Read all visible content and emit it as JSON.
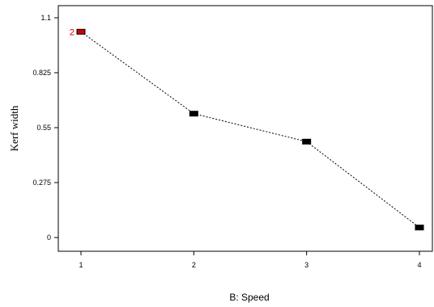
{
  "chart_data": {
    "type": "line",
    "xlabel": "B: Speed",
    "ylabel": "Kerf width",
    "x": [
      1,
      2,
      3,
      4
    ],
    "x_tick_labels": [
      "1",
      "2",
      "3",
      "4"
    ],
    "y_ticks": [
      0,
      0.275,
      0.55,
      0.825,
      1.1
    ],
    "y_tick_labels": [
      "0",
      "0.275",
      "0.55",
      "0.825",
      "1.1"
    ],
    "ylim": [
      0,
      1.1
    ],
    "xlim": [
      1,
      4
    ],
    "series": [
      {
        "values": [
          1.03,
          0.62,
          0.48,
          0.05
        ]
      }
    ],
    "point_annotations": [
      {
        "index": 0,
        "text": "2",
        "color": "#cc0000"
      }
    ],
    "line_style": "dashed",
    "marker_color": "#000000",
    "highlight_marker_color": "#cc0000",
    "grid": false,
    "legend": "none"
  }
}
